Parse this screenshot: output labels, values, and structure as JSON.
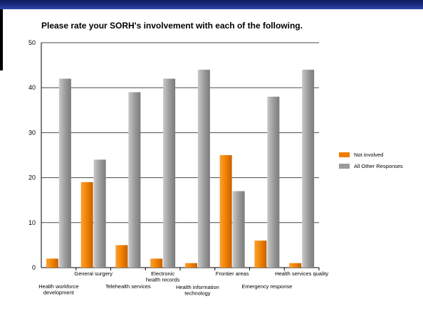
{
  "colors": {
    "not_involved": "#f07d00",
    "all_other": "#9a9a9a",
    "header_bar": "#1b2f86"
  },
  "chart_data": {
    "type": "bar",
    "title": "Please rate your SORH's involvement with each of the following.",
    "xlabel": "",
    "ylabel": "",
    "ylim": [
      0,
      50
    ],
    "yticks": [
      0,
      10,
      20,
      30,
      40,
      50
    ],
    "grid": true,
    "legend_position": "right",
    "categories": [
      "Health workforce development",
      "General surgery",
      "Telehealth services",
      "Electronic health records",
      "Health information technology",
      "Frontier areas",
      "Emergency response",
      "Health services quality"
    ],
    "series": [
      {
        "name": "Not involved",
        "values": [
          2,
          19,
          5,
          2,
          1,
          25,
          6,
          1
        ]
      },
      {
        "name": "All Other Responses",
        "values": [
          42,
          24,
          39,
          42,
          44,
          17,
          38,
          44
        ]
      }
    ]
  }
}
